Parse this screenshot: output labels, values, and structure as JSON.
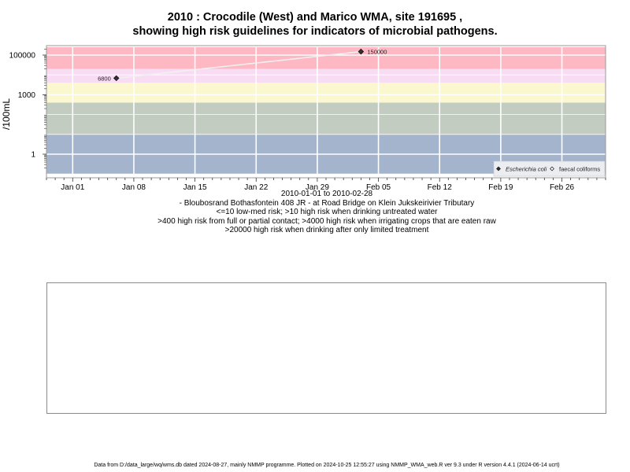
{
  "title_line1": "2010 : Crocodile (West) and Marico WMA, site 191695 ,",
  "title_line2": "showing high risk guidelines for indicators of microbial pathogens.",
  "caption": {
    "date_range": "2010-01-01 to 2010-02-28",
    "site_desc": "- Bloubosrand Bothasfontein 408 JR - at Road Bridge on Klein Jukskeirivier Tributary",
    "risk1": "<=10 low-med risk; >10 high risk when drinking untreated water",
    "risk2": ">400 high risk from full or partial contact; >4000 high risk when irrigating crops that are eaten raw",
    "risk3": ">20000 high risk when drinking after only limited treatment"
  },
  "footer": "Data from D:/data_large/wq/wms.db dated 2024-08-27, mainly NMMP programme. Plotted on 2024-10-25 12:55:27 using NMMP_WMA_web.R ver 9.3 under R version 4.4.1 (2024-06-14 ucrt)",
  "chart_data": {
    "type": "scatter",
    "ylabel": "/100mL",
    "y_scale": "log10",
    "ylim": [
      0.1,
      250000
    ],
    "xlim": [
      "2009-12-29",
      "2010-03-03"
    ],
    "x_ticks": [
      {
        "date": "2010-01-01",
        "label": "Jan 01"
      },
      {
        "date": "2010-01-08",
        "label": "Jan 08"
      },
      {
        "date": "2010-01-15",
        "label": "Jan 15"
      },
      {
        "date": "2010-01-22",
        "label": "Jan 22"
      },
      {
        "date": "2010-01-29",
        "label": "Jan 29"
      },
      {
        "date": "2010-02-05",
        "label": "Feb 05"
      },
      {
        "date": "2010-02-12",
        "label": "Feb 12"
      },
      {
        "date": "2010-02-19",
        "label": "Feb 19"
      },
      {
        "date": "2010-02-26",
        "label": "Feb 26"
      }
    ],
    "y_ticks": [
      {
        "value": 1,
        "label": "1"
      },
      {
        "value": 1000,
        "label": "1000"
      },
      {
        "value": 100000,
        "label": "100000"
      }
    ],
    "bands": [
      {
        "from": 0.1,
        "to": 10,
        "color": "#a3b4cc"
      },
      {
        "from": 10,
        "to": 400,
        "color": "#c3ccc0"
      },
      {
        "from": 400,
        "to": 4000,
        "color": "#fbf7cf"
      },
      {
        "from": 4000,
        "to": 20000,
        "color": "#f8dcf4"
      },
      {
        "from": 20000,
        "to": 250000,
        "color": "#fdb8c4"
      }
    ],
    "grid": true,
    "legend_position": "bottom-right",
    "series": [
      {
        "name": "Escherichia coli",
        "marker": "filled-diamond",
        "color": "#333333",
        "points": [
          {
            "x": "2010-01-06",
            "y": 6800,
            "label": "6800"
          },
          {
            "x": "2010-02-03",
            "y": 150000,
            "label": "150000"
          }
        ]
      },
      {
        "name": "faecal coliforms",
        "marker": "open-diamond",
        "color": "#333333",
        "points": []
      }
    ]
  }
}
